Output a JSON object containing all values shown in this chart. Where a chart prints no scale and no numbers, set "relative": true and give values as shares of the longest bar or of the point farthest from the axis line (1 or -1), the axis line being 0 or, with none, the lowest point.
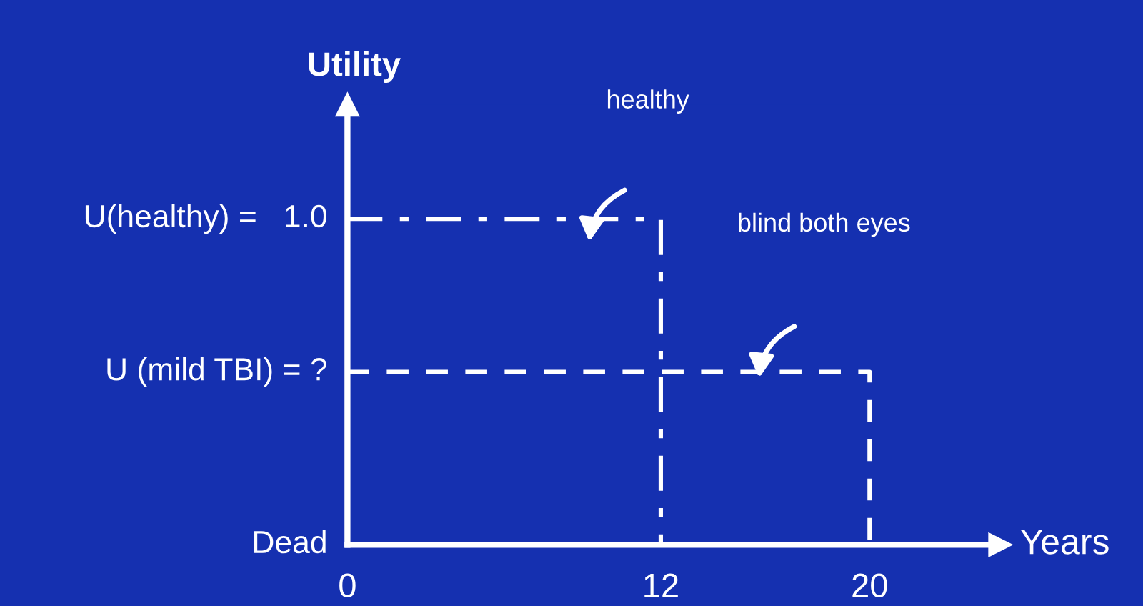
{
  "chart_data": {
    "type": "line",
    "xlabel": "Years",
    "ylabel": "Utility",
    "relative": true,
    "xlim": [
      0,
      25
    ],
    "xticks": [
      0,
      12,
      20
    ],
    "series": [
      {
        "color": "#ffffff",
        "x": [
          0,
          12,
          12
        ],
        "values": [
          1.0,
          1.0,
          0
        ],
        "line_style": "dashdot"
      },
      {
        "color": "#ffffff",
        "x": [
          0,
          20,
          20
        ],
        "values": [
          0.53,
          0.53,
          0
        ],
        "line_style": "dashed"
      }
    ],
    "annotations": [
      "healthy",
      "blind both eyes",
      "U(healthy) =   1.0",
      "U (mild TBI) = ?",
      "Dead"
    ],
    "marker": "none",
    "grid": false,
    "legend": false
  }
}
